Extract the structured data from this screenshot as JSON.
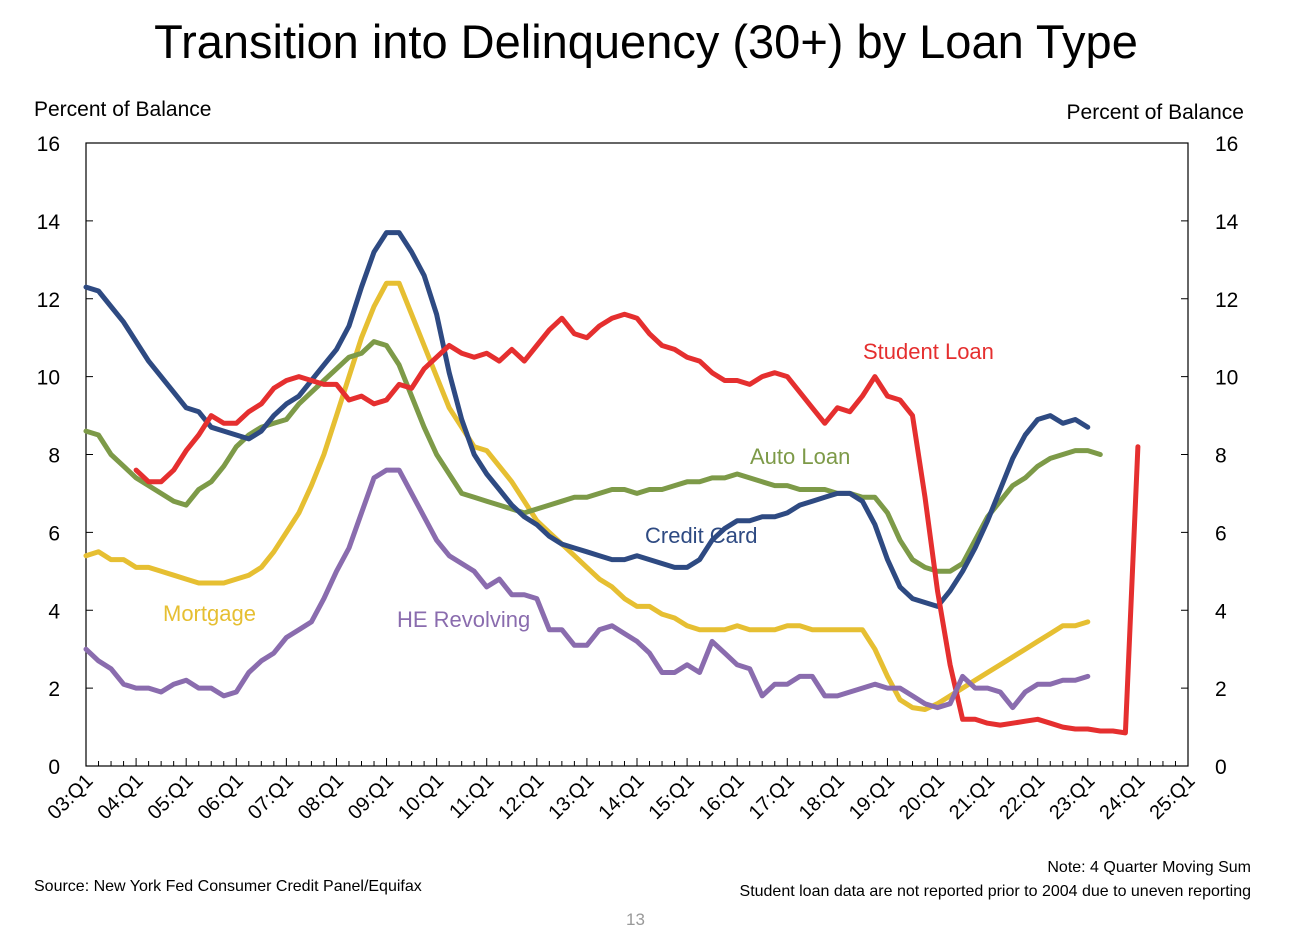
{
  "page": {
    "number": "13"
  },
  "footer": {
    "source": "Source: New York Fed Consumer Credit Panel/Equifax",
    "note": "Note: 4 Quarter Moving Sum",
    "note2": "Student loan data are not reported prior to 2004 due to uneven reporting"
  },
  "chart_data": {
    "type": "line",
    "title": "Transition into Delinquency (30+) by Loan Type",
    "ylabel_left": "Percent of Balance",
    "ylabel_right": "Percent of Balance",
    "xlabel": "",
    "ylim": [
      0,
      16
    ],
    "yticks": [
      0,
      2,
      4,
      6,
      8,
      10,
      12,
      14,
      16
    ],
    "x_tick_labels": [
      "03:Q1",
      "04:Q1",
      "05:Q1",
      "06:Q1",
      "07:Q1",
      "08:Q1",
      "09:Q1",
      "10:Q1",
      "11:Q1",
      "12:Q1",
      "13:Q1",
      "14:Q1",
      "15:Q1",
      "16:Q1",
      "17:Q1",
      "18:Q1",
      "19:Q1",
      "20:Q1",
      "21:Q1",
      "22:Q1",
      "23:Q1",
      "24:Q1",
      "25:Q1"
    ],
    "x_note": "Quarterly from 2003 Q1 to 2025 Q1; each series value corresponds to a quarter",
    "grid": false,
    "legend": "inline labels",
    "series": [
      {
        "name": "Mortgage",
        "color": "#E6BF32",
        "start": "2003 Q1",
        "values": [
          5.4,
          5.5,
          5.3,
          5.3,
          5.1,
          5.1,
          5.0,
          4.9,
          4.8,
          4.7,
          4.7,
          4.7,
          4.8,
          4.9,
          5.1,
          5.5,
          6.0,
          6.5,
          7.2,
          8.0,
          9.0,
          10.0,
          11.0,
          11.8,
          12.4,
          12.4,
          11.6,
          10.8,
          10.0,
          9.2,
          8.7,
          8.2,
          8.1,
          7.7,
          7.3,
          6.8,
          6.3,
          6.0,
          5.7,
          5.4,
          5.1,
          4.8,
          4.6,
          4.3,
          4.1,
          4.1,
          3.9,
          3.8,
          3.6,
          3.5,
          3.5,
          3.5,
          3.6,
          3.5,
          3.5,
          3.5,
          3.6,
          3.6,
          3.5,
          3.5,
          3.5,
          3.5,
          3.5,
          3.0,
          2.3,
          1.7,
          1.5,
          1.45,
          1.6,
          1.8,
          2.0,
          2.2,
          2.4,
          2.6,
          2.8,
          3.0,
          3.2,
          3.4,
          3.6,
          3.6,
          3.7
        ]
      },
      {
        "name": "Auto Loan",
        "color": "#7D9A48",
        "start": "2003 Q1",
        "values": [
          8.6,
          8.5,
          8.0,
          7.7,
          7.4,
          7.2,
          7.0,
          6.8,
          6.7,
          7.1,
          7.3,
          7.7,
          8.2,
          8.5,
          8.7,
          8.8,
          8.9,
          9.3,
          9.6,
          9.9,
          10.2,
          10.5,
          10.6,
          10.9,
          10.8,
          10.3,
          9.5,
          8.7,
          8.0,
          7.5,
          7.0,
          6.9,
          6.8,
          6.7,
          6.6,
          6.5,
          6.6,
          6.7,
          6.8,
          6.9,
          6.9,
          7.0,
          7.1,
          7.1,
          7.0,
          7.1,
          7.1,
          7.2,
          7.3,
          7.3,
          7.4,
          7.4,
          7.5,
          7.4,
          7.3,
          7.2,
          7.2,
          7.1,
          7.1,
          7.1,
          7.0,
          7.0,
          6.9,
          6.9,
          6.5,
          5.8,
          5.3,
          5.1,
          5.0,
          5.0,
          5.2,
          5.8,
          6.4,
          6.8,
          7.2,
          7.4,
          7.7,
          7.9,
          8.0,
          8.1,
          8.1,
          8.0
        ]
      },
      {
        "name": "Credit Card",
        "color": "#2E4A82",
        "start": "2003 Q1",
        "values": [
          12.3,
          12.2,
          11.8,
          11.4,
          10.9,
          10.4,
          10.0,
          9.6,
          9.2,
          9.1,
          8.7,
          8.6,
          8.5,
          8.4,
          8.6,
          9.0,
          9.3,
          9.5,
          9.9,
          10.3,
          10.7,
          11.3,
          12.3,
          13.2,
          13.7,
          13.7,
          13.2,
          12.6,
          11.6,
          10.1,
          8.9,
          8.0,
          7.5,
          7.1,
          6.7,
          6.4,
          6.2,
          5.9,
          5.7,
          5.6,
          5.5,
          5.4,
          5.3,
          5.3,
          5.4,
          5.3,
          5.2,
          5.1,
          5.1,
          5.3,
          5.8,
          6.1,
          6.3,
          6.3,
          6.4,
          6.4,
          6.5,
          6.7,
          6.8,
          6.9,
          7.0,
          7.0,
          6.8,
          6.2,
          5.3,
          4.6,
          4.3,
          4.2,
          4.1,
          4.5,
          5.0,
          5.6,
          6.3,
          7.1,
          7.9,
          8.5,
          8.9,
          9.0,
          8.8,
          8.9,
          8.7
        ]
      },
      {
        "name": "Student Loan",
        "color": "#E52F2F",
        "start": "2004 Q1",
        "values": [
          7.6,
          7.3,
          7.3,
          7.6,
          8.1,
          8.5,
          9.0,
          8.8,
          8.8,
          9.1,
          9.3,
          9.7,
          9.9,
          10.0,
          9.9,
          9.8,
          9.8,
          9.4,
          9.5,
          9.3,
          9.4,
          9.8,
          9.7,
          10.2,
          10.5,
          10.8,
          10.6,
          10.5,
          10.6,
          10.4,
          10.7,
          10.4,
          10.8,
          11.2,
          11.5,
          11.1,
          11.0,
          11.3,
          11.5,
          11.6,
          11.5,
          11.1,
          10.8,
          10.7,
          10.5,
          10.4,
          10.1,
          9.9,
          9.9,
          9.8,
          10.0,
          10.1,
          10.0,
          9.6,
          9.2,
          8.8,
          9.2,
          9.1,
          9.5,
          10.0,
          9.5,
          9.4,
          9.0,
          6.9,
          4.5,
          2.6,
          1.2,
          1.2,
          1.1,
          1.05,
          1.1,
          1.15,
          1.2,
          1.1,
          1.0,
          0.95,
          0.95,
          0.9,
          0.9,
          0.85,
          8.2
        ]
      },
      {
        "name": "HE Revolving",
        "color": "#8A6CAE",
        "start": "2003 Q1",
        "values": [
          3.0,
          2.7,
          2.5,
          2.1,
          2.0,
          2.0,
          1.9,
          2.1,
          2.2,
          2.0,
          2.0,
          1.8,
          1.9,
          2.4,
          2.7,
          2.9,
          3.3,
          3.5,
          3.7,
          4.3,
          5.0,
          5.6,
          6.5,
          7.4,
          7.6,
          7.6,
          7.0,
          6.4,
          5.8,
          5.4,
          5.2,
          5.0,
          4.6,
          4.8,
          4.4,
          4.4,
          4.3,
          3.5,
          3.5,
          3.1,
          3.1,
          3.5,
          3.6,
          3.4,
          3.2,
          2.9,
          2.4,
          2.4,
          2.6,
          2.4,
          3.2,
          2.9,
          2.6,
          2.5,
          1.8,
          2.1,
          2.1,
          2.3,
          2.3,
          1.8,
          1.8,
          1.9,
          2.0,
          2.1,
          2.0,
          2.0,
          1.8,
          1.6,
          1.5,
          1.6,
          2.3,
          2.0,
          2.0,
          1.9,
          1.5,
          1.9,
          2.1,
          2.1,
          2.2,
          2.2,
          2.3
        ]
      }
    ],
    "annotations": [
      {
        "text": "Student Loan",
        "color": "#E52F2F"
      },
      {
        "text": "Auto Loan",
        "color": "#7D9A48"
      },
      {
        "text": "Credit Card",
        "color": "#2E4A82"
      },
      {
        "text": "Mortgage",
        "color": "#E6BF32"
      },
      {
        "text": "HE Revolving",
        "color": "#8A6CAE"
      }
    ]
  }
}
